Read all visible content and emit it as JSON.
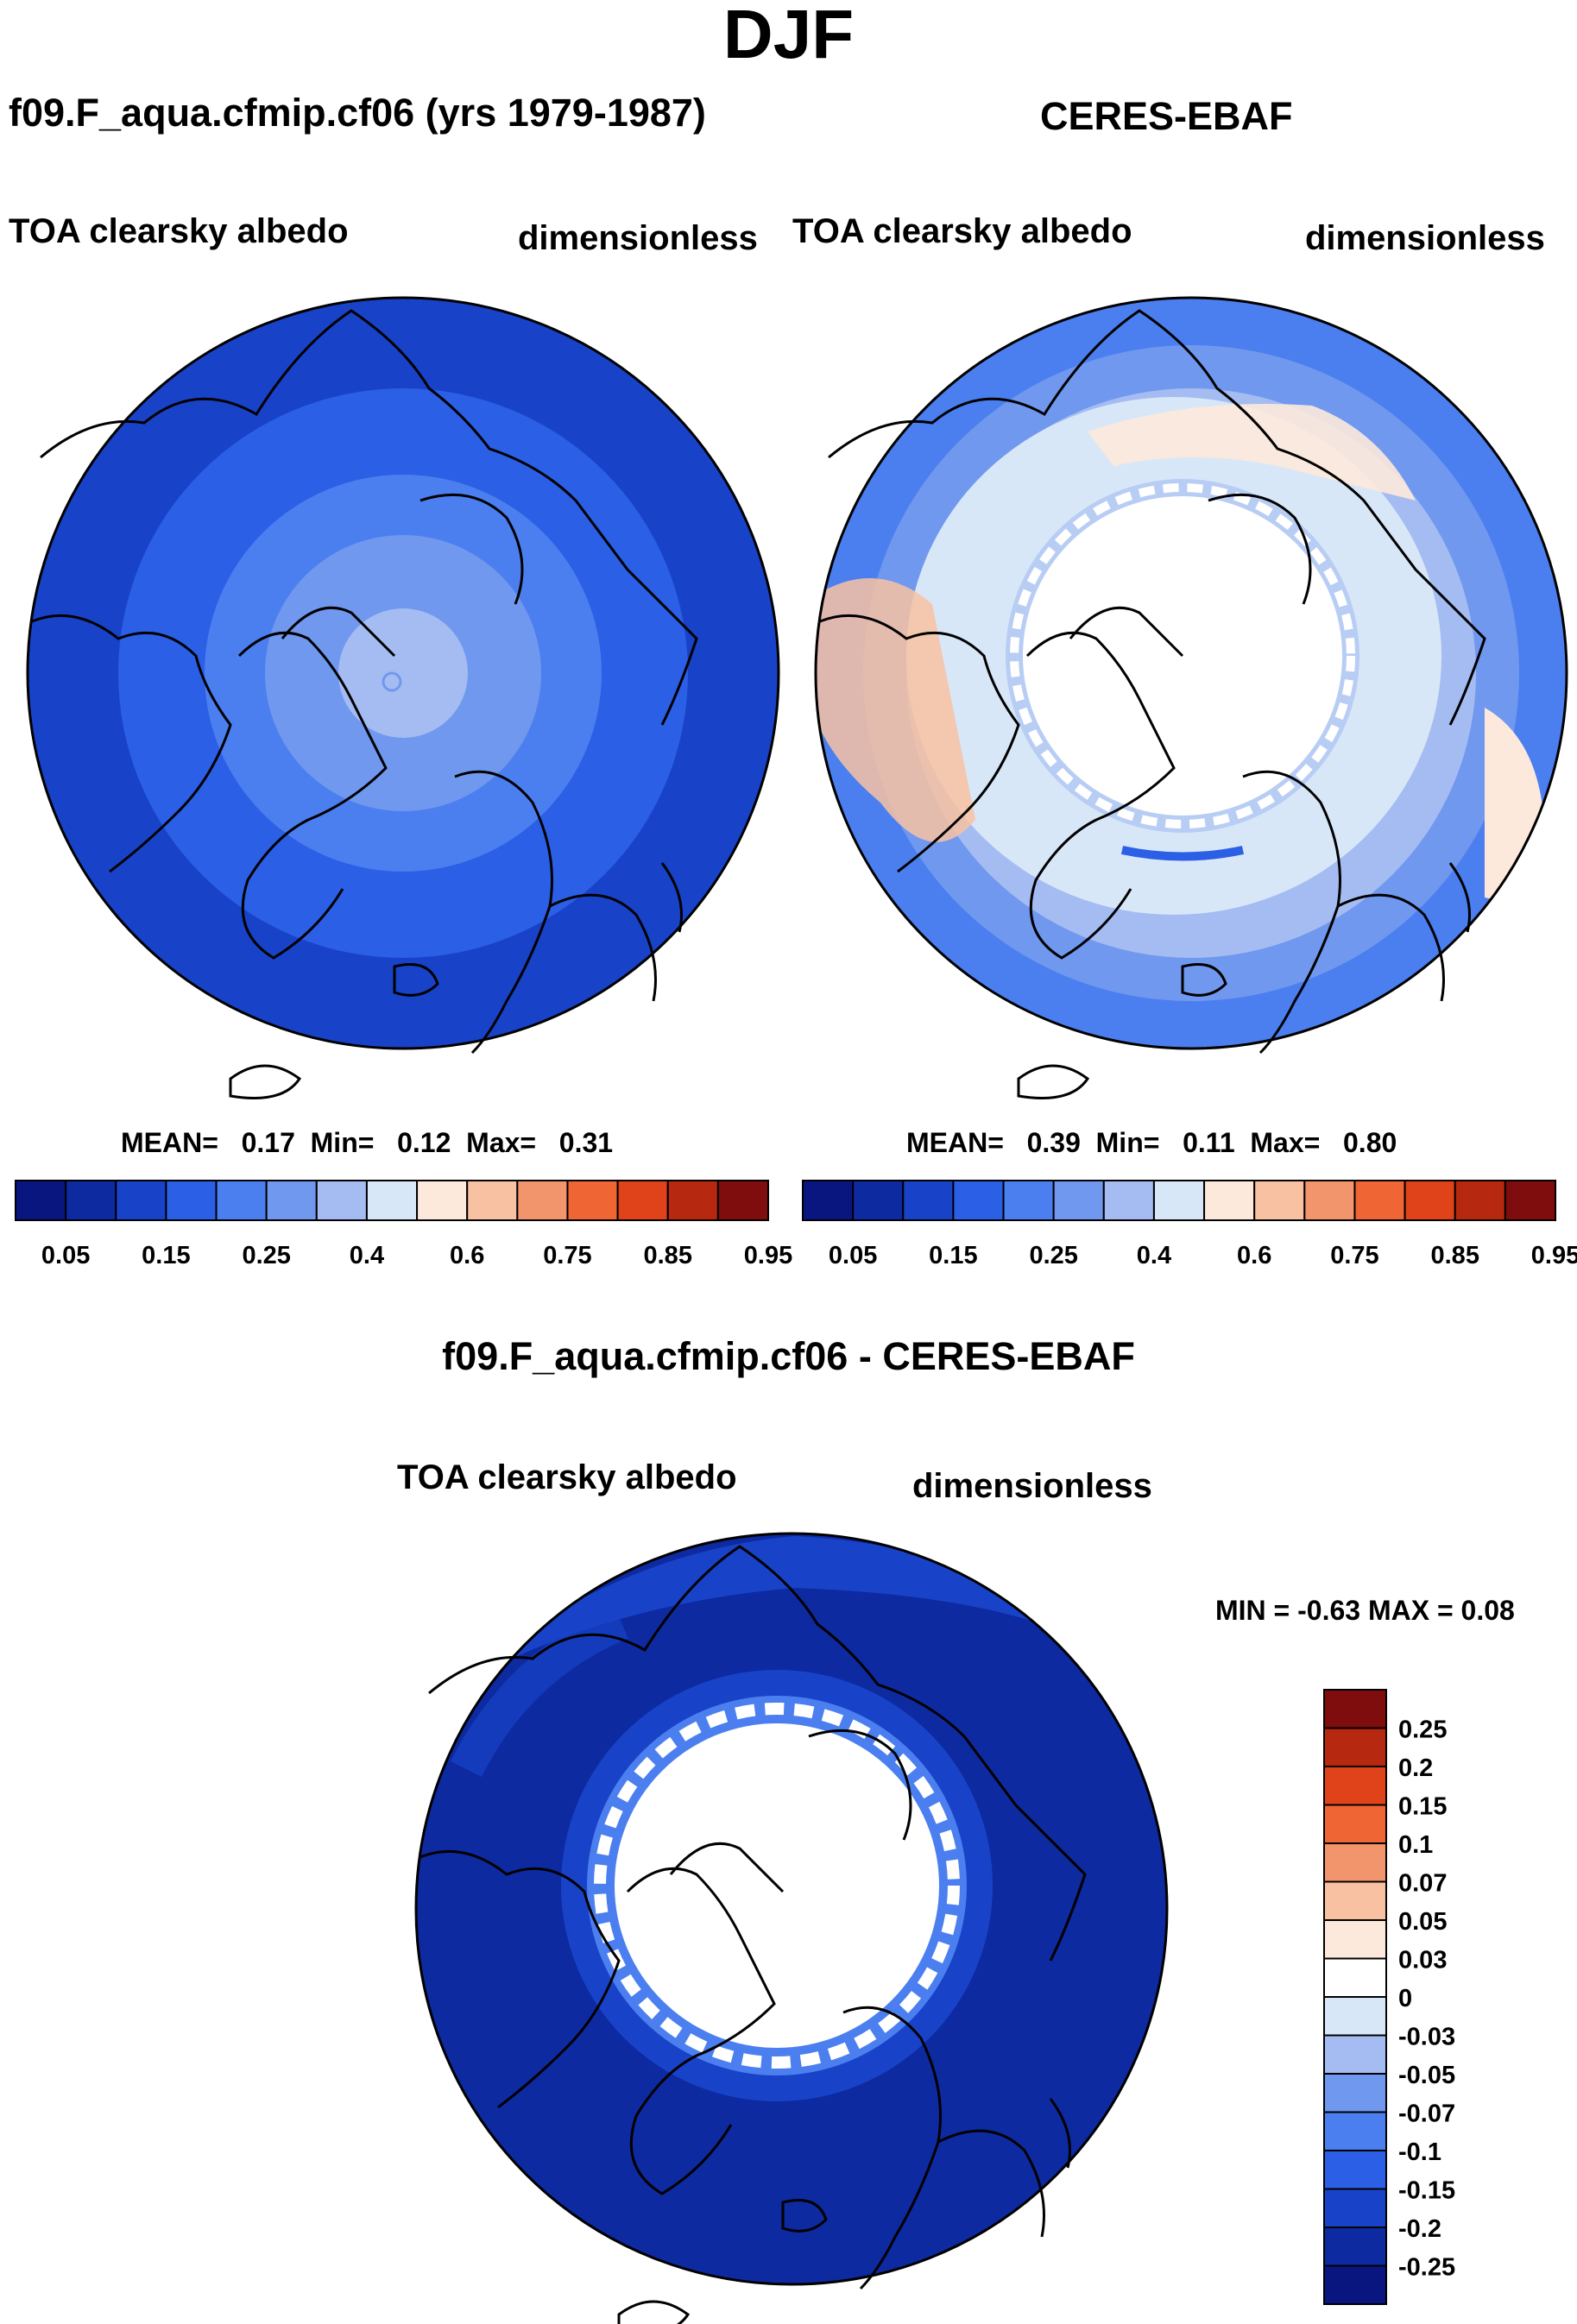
{
  "figure_title": "DJF",
  "palette_colors": [
    "#0a1680",
    "#0d2aa0",
    "#1843c8",
    "#2b5fe6",
    "#4b7ff0",
    "#7098ef",
    "#a4bcf1",
    "#d8e7f8",
    "#fde9dc",
    "#f8c2a2",
    "#f2956d",
    "#ef6634",
    "#e0431a",
    "#b62810",
    "#7f0d0d"
  ],
  "chart_data": [
    {
      "type": "heatmap",
      "projection": "north polar stereographic",
      "title": "f09.F_aqua.cfmip.cf06 (yrs 1979-1987)",
      "variable": "TOA clearsky albedo",
      "units": "dimensionless",
      "stats": {
        "mean_label": "MEAN=",
        "mean": "0.17",
        "min_label": "Min=",
        "min": "0.12",
        "max_label": "Max=",
        "max": "0.31"
      },
      "colorbar_levels": [
        0.05,
        0.1,
        0.15,
        0.2,
        0.25,
        0.3,
        0.4,
        0.5,
        0.6,
        0.7,
        0.75,
        0.8,
        0.85,
        0.9,
        0.95
      ],
      "colorbar_labels": [
        "0.05",
        "0.15",
        "0.25",
        "0.4",
        "0.6",
        "0.75",
        "0.85",
        "0.95"
      ]
    },
    {
      "type": "heatmap",
      "projection": "north polar stereographic",
      "title": "CERES-EBAF",
      "variable": "TOA clearsky albedo",
      "units": "dimensionless",
      "stats": {
        "mean_label": "MEAN=",
        "mean": "0.39",
        "min_label": "Min=",
        "min": "0.11",
        "max_label": "Max=",
        "max": "0.80"
      },
      "colorbar_levels": [
        0.05,
        0.1,
        0.15,
        0.2,
        0.25,
        0.3,
        0.4,
        0.5,
        0.6,
        0.7,
        0.75,
        0.8,
        0.85,
        0.9,
        0.95
      ],
      "colorbar_labels": [
        "0.05",
        "0.15",
        "0.25",
        "0.4",
        "0.6",
        "0.75",
        "0.85",
        "0.95"
      ]
    },
    {
      "type": "heatmap",
      "projection": "north polar stereographic",
      "title": "f09.F_aqua.cfmip.cf06 - CERES-EBAF",
      "variable": "TOA clearsky albedo",
      "units": "dimensionless",
      "minmax_label": "MIN =  -0.63 MAX =   0.08",
      "colorbar_levels": [
        -0.25,
        -0.2,
        -0.15,
        -0.1,
        -0.07,
        -0.05,
        -0.03,
        0,
        0.03,
        0.05,
        0.07,
        0.1,
        0.15,
        0.2,
        0.25
      ],
      "colorbar_labels": [
        "0.25",
        "0.2",
        "0.15",
        "0.1",
        "0.07",
        "0.05",
        "0.03",
        "0",
        "-0.03",
        "-0.05",
        "-0.07",
        "-0.1",
        "-0.15",
        "-0.2",
        "-0.25"
      ]
    }
  ]
}
